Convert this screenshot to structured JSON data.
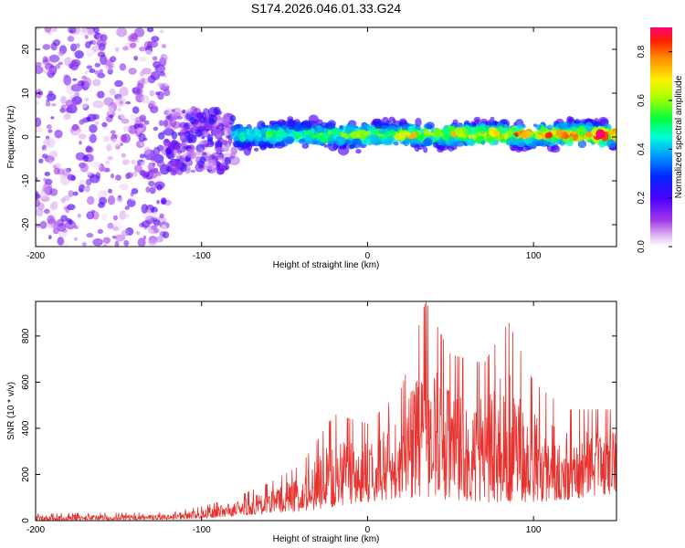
{
  "title": "S174.2026.046.01.33.G24",
  "chart_data": [
    {
      "type": "heatmap",
      "xlabel": "Height of straight line (km)",
      "ylabel": "Frequency (Hz)",
      "xlim": [
        -200,
        150
      ],
      "ylim": [
        -25,
        25
      ],
      "x_ticks": [
        -200,
        -100,
        0,
        100
      ],
      "y_ticks": [
        -20,
        -10,
        0,
        10,
        20
      ],
      "colorbar": {
        "label": "Normalized spectral amplitude",
        "range": [
          0,
          0.9
        ],
        "ticks": [
          0.0,
          0.2,
          0.4,
          0.6,
          0.8
        ],
        "colormap": "rainbow (purple-blue-cyan-green-yellow-red)"
      },
      "regions": [
        {
          "x_range": [
            -200,
            -120
          ],
          "frequency_range": [
            -25,
            25
          ],
          "amplitude_range": [
            0.0,
            0.2
          ],
          "description": "diffuse noise"
        },
        {
          "x_range": [
            -120,
            -80
          ],
          "frequency_range": [
            -8,
            6
          ],
          "amplitude_range": [
            0.05,
            0.25
          ]
        },
        {
          "x_range": [
            -80,
            150
          ],
          "frequency_center": 0.5,
          "frequency_halfwidth": 2,
          "amplitude_range": [
            0.2,
            0.9
          ],
          "description": "signal band near 0 Hz, strengthening with height"
        }
      ]
    },
    {
      "type": "line",
      "xlabel": "Height of straight line (km)",
      "ylabel": "SNR (10 * v/v)",
      "xlim": [
        -200,
        150
      ],
      "ylim": [
        0,
        950
      ],
      "x_ticks": [
        -200,
        -100,
        0,
        100
      ],
      "y_ticks": [
        0,
        200,
        400,
        600,
        800
      ],
      "color": "#e8322e",
      "envelope": [
        {
          "x": -200,
          "low": 0,
          "high": 30
        },
        {
          "x": -120,
          "low": 5,
          "high": 35
        },
        {
          "x": -100,
          "low": 10,
          "high": 60
        },
        {
          "x": -80,
          "low": 20,
          "high": 100
        },
        {
          "x": -60,
          "low": 30,
          "high": 160
        },
        {
          "x": -40,
          "low": 40,
          "high": 240
        },
        {
          "x": -20,
          "low": 60,
          "high": 460
        },
        {
          "x": 0,
          "low": 80,
          "high": 420
        },
        {
          "x": 20,
          "low": 100,
          "high": 560
        },
        {
          "x": 35,
          "low": 100,
          "high": 950
        },
        {
          "x": 50,
          "low": 90,
          "high": 720
        },
        {
          "x": 70,
          "low": 80,
          "high": 680
        },
        {
          "x": 85,
          "low": 80,
          "high": 860
        },
        {
          "x": 100,
          "low": 80,
          "high": 600
        },
        {
          "x": 120,
          "low": 90,
          "high": 480
        },
        {
          "x": 150,
          "low": 120,
          "high": 480
        }
      ]
    }
  ]
}
